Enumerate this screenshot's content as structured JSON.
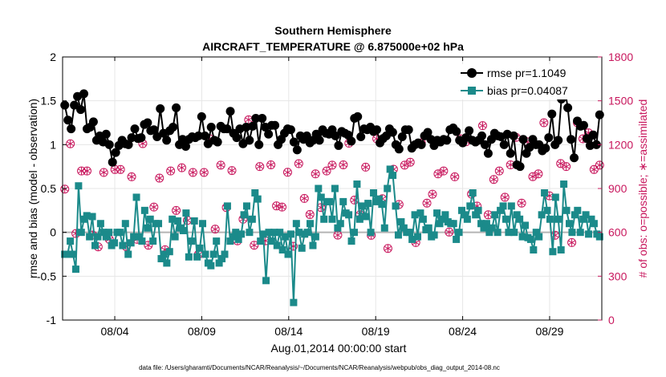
{
  "chart_data": {
    "type": "line",
    "title": "Southern Hemisphere",
    "subtitle": "AIRCRAFT_TEMPERATURE @ 6.875000e+02 hPa",
    "xlabel": "Aug.01,2014 00:00:00 start",
    "ylabel": "rmse and bias (model - observation)",
    "ylabel_right": "# of obs: o=possible; ∗=assimilated",
    "footer": "data file: /Users/gharamti/Documents/NCAR/Reanalysis/~/Documents/NCAR/Reanalysis/webpub/obs_diag_output_2014-08.nc",
    "xlim": [
      1.0,
      32.0
    ],
    "ylim": [
      -1,
      2
    ],
    "ylim_right": [
      0,
      1800
    ],
    "grid": true,
    "legend_position": "top-right",
    "x_ticks": [
      4,
      9,
      14,
      19,
      24,
      29
    ],
    "x_tick_labels": [
      "08/04",
      "08/09",
      "08/14",
      "08/19",
      "08/24",
      "08/29"
    ],
    "y_ticks": [
      -1,
      -0.5,
      0,
      0.5,
      1,
      1.5,
      2
    ],
    "y_tick_labels": [
      "-1",
      "-0.5",
      "0",
      "0.5",
      "1",
      "1.5",
      "2"
    ],
    "y_ticks_right": [
      0,
      300,
      600,
      900,
      1200,
      1500,
      1800
    ],
    "y_tick_labels_right": [
      "0",
      "300",
      "600",
      "900",
      "1200",
      "1500",
      "1800"
    ],
    "x_step": 0.25,
    "x_start": 1.125,
    "colors": {
      "rmse": "#000000",
      "bias": "#1b8a8a",
      "obs": "#c8175d",
      "zero_line": "#b4b4b4",
      "grid": "#e6e6e6"
    },
    "series": [
      {
        "name": "rmse",
        "legend_label": "rmse pr=1.1049",
        "values": [
          1.45,
          1.28,
          1.18,
          1.45,
          1.55,
          1.4,
          1.58,
          1.18,
          1.2,
          1.26,
          1.05,
          1.1,
          1.03,
          1.12,
          1.0,
          0.8,
          0.91,
          0.99,
          1.05,
          1.01,
          1.0,
          1.08,
          1.18,
          1.07,
          1.08,
          1.23,
          1.25,
          1.16,
          1.17,
          1.09,
          1.41,
          1.13,
          1.05,
          1.16,
          1.2,
          1.42,
          1.0,
          1.06,
          0.98,
          1.06,
          1.09,
          1.08,
          1.1,
          1.32,
          1.1,
          1.01,
          1.2,
          1.05,
          1.03,
          1.21,
          1.18,
          1.18,
          1.38,
          1.13,
          1.08,
          1.18,
          1.01,
          1.2,
          1.05,
          1.21,
          1.3,
          1.0,
          1.3,
          1.2,
          1.12,
          1.22,
          1.22,
          1.0,
          1.06,
          1.13,
          1.18,
          1.17,
          1.03,
          0.94,
          1.1,
          1.06,
          1.1,
          1.02,
          1.05,
          1.12,
          1.05,
          1.17,
          1.13,
          1.12,
          1.17,
          1.1,
          0.99,
          1.15,
          1.13,
          1.11,
          1.04,
          1.3,
          1.32,
          1.09,
          1.18,
          1.17,
          1.2,
          1.15,
          1.17,
          1.02,
          1.07,
          1.1,
          1.18,
          1.14,
          1.0,
          0.95,
          1.09,
          1.17,
          1.17,
          0.96,
          1.0,
          1.02,
          1.0,
          1.1,
          1.14,
          1.06,
          0.99,
          1.05,
          1.03,
          1.06,
          1.05,
          1.17,
          1.19,
          1.15,
          1.05,
          1.02,
          1.08,
          1.16,
          1.05,
          1.03,
          1.05,
          1.1,
          1.0,
          0.9,
          1.06,
          1.13,
          1.1,
          1.09,
          1.0,
          1.12,
          0.9,
          1.1,
          0.77,
          0.75,
          1.06,
          0.9,
          0.97,
          1.06,
          1.0,
          1.0,
          0.93,
          0.96,
          1.08,
          1.35,
          1.0,
          1.05,
          1.52,
          1.65,
          1.42,
          1.06,
          0.85,
          1.27,
          1.21,
          1.22,
          1.07,
          0.99,
          1.11,
          1.0,
          1.34
        ],
        "style": "line-circle"
      },
      {
        "name": "bias",
        "legend_label": "bias pr=0.04087",
        "values": [
          -0.25,
          -0.25,
          -0.1,
          -0.25,
          -0.42,
          0.53,
          0.0,
          0.15,
          0.19,
          -0.05,
          0.18,
          -0.15,
          -0.05,
          0.1,
          0.0,
          -0.05,
          0.0,
          -0.15,
          -0.12,
          0.0,
          0.0,
          -0.15,
          0.1,
          -0.25,
          -0.12,
          -0.05,
          0.4,
          -0.05,
          -0.1,
          0.25,
          0.05,
          0.15,
          -0.1,
          0.1,
          0.1,
          -0.3,
          -0.25,
          -0.35,
          -0.22,
          0.15,
          -0.05,
          0.13,
          0.05,
          0.02,
          0.22,
          -0.28,
          -0.1,
          0.13,
          -0.28,
          -0.18,
          0.1,
          -0.25,
          -0.35,
          -0.38,
          -0.25,
          -0.1,
          -0.35,
          -0.3,
          -0.25,
          0.3,
          -0.1,
          -0.05,
          0.0,
          -0.08,
          -0.02,
          0.2,
          0.3,
          0.0,
          0.15,
          0.45,
          0.38,
          -0.1,
          -0.02,
          -0.55,
          0.0,
          -0.1,
          0.0,
          -0.15,
          0.0,
          -0.2,
          -0.05,
          -0.25,
          -0.02,
          -0.8,
          0.1,
          0.0,
          -0.18,
          -0.02,
          0.0,
          0.1,
          -0.15,
          -0.05,
          0.5,
          0.4,
          0.15,
          0.35,
          0.35,
          0.15,
          0.5,
          0.05,
          0.1,
          0.35,
          0.22,
          0.2,
          -0.1,
          0.0,
          0.55,
          0.15,
          0.3,
          0.18,
          0.33,
          0.0,
          0.45,
          0.35,
          0.38,
          0.32,
          0.05,
          0.5,
          0.72,
          0.65,
          0.3,
          -0.03,
          0.12,
          0.05,
          0.0,
          0.0,
          -0.08,
          0.2,
          -0.05,
          0.22,
          0.15,
          0.03,
          0.05,
          -0.05,
          -0.03,
          0.22,
          0.1,
          0.15,
          0.2,
          0.12,
          0.1,
          0.1,
          -0.08,
          0.0,
          0.25,
          0.2,
          0.15,
          0.3,
          0.45,
          0.2,
          0.25,
          0.1,
          0.05,
          0.1,
          0.0,
          0.05,
          0.2,
          0.0,
          0.25,
          0.3,
          0.15,
          0.0,
          0.3,
          0.0,
          0.2,
          0.15,
          -0.05,
          0.08,
          -0.06,
          -0.08,
          -0.2,
          0.0,
          -0.05,
          0.2,
          0.45,
          0.25,
          0.15,
          -0.22,
          0.4,
          0.15,
          -0.2,
          0.55,
          0.25,
          0.1,
          0.0,
          0.2,
          0.25,
          0.0,
          0.15,
          0.2,
          -0.02,
          0.15,
          0.1,
          -0.02,
          -0.05
        ],
        "style": "line-square"
      },
      {
        "name": "obs_possible",
        "axis": "right",
        "values": [
          896,
          1206,
          592,
          1020,
          1020,
          582,
          501,
          1010,
          552,
          1030,
          1030,
          503,
          980,
          552,
          1207,
          512,
          773,
          971,
          481,
          1020,
          750,
          1042,
          682,
          1010,
          450,
          1010,
          1240,
          622,
          1060,
          770,
          1023,
          542,
          690,
          1370,
          512,
          1050,
          542,
          1062,
          781,
          773,
          1011,
          505,
          1070,
          832,
          722,
          1000,
          770,
          1020,
          1060,
          581,
          1062,
          1210,
          821,
          721,
          1046,
          580,
          1240,
          830,
          490,
          1032,
          791,
          1060,
          1080,
          530,
          1212,
          800,
          861,
          1000,
          1020,
          602,
          980,
          1240,
          1220,
          862,
          780,
          1330,
          720,
          962,
          1020,
          840,
          1062,
          1250,
          800,
          1220,
          981,
          1000,
          1350,
          850,
          580,
          1071,
          1050,
          530,
          1350,
          1240,
          1281,
          1030,
          1060
        ],
        "style": "marker-open-circle"
      },
      {
        "name": "obs_assimilated",
        "axis": "right",
        "values": [
          896,
          1206,
          592,
          1020,
          1020,
          582,
          501,
          1010,
          552,
          1030,
          1030,
          503,
          980,
          552,
          1207,
          512,
          773,
          971,
          481,
          1020,
          750,
          1042,
          682,
          1010,
          450,
          1010,
          1240,
          622,
          1060,
          770,
          1023,
          542,
          690,
          1370,
          512,
          1050,
          542,
          1062,
          781,
          773,
          1011,
          505,
          1070,
          832,
          722,
          1000,
          770,
          1020,
          1060,
          581,
          1062,
          1210,
          821,
          721,
          1046,
          580,
          1240,
          830,
          490,
          1032,
          791,
          1060,
          1080,
          530,
          1212,
          800,
          861,
          1000,
          1020,
          602,
          980,
          1240,
          1220,
          862,
          780,
          1330,
          720,
          962,
          1020,
          840,
          1062,
          1250,
          800,
          1220,
          981,
          1000,
          1350,
          850,
          580,
          1071,
          1050,
          530,
          1350,
          1240,
          1281,
          1030,
          1060
        ],
        "style": "marker-asterisk"
      }
    ]
  }
}
